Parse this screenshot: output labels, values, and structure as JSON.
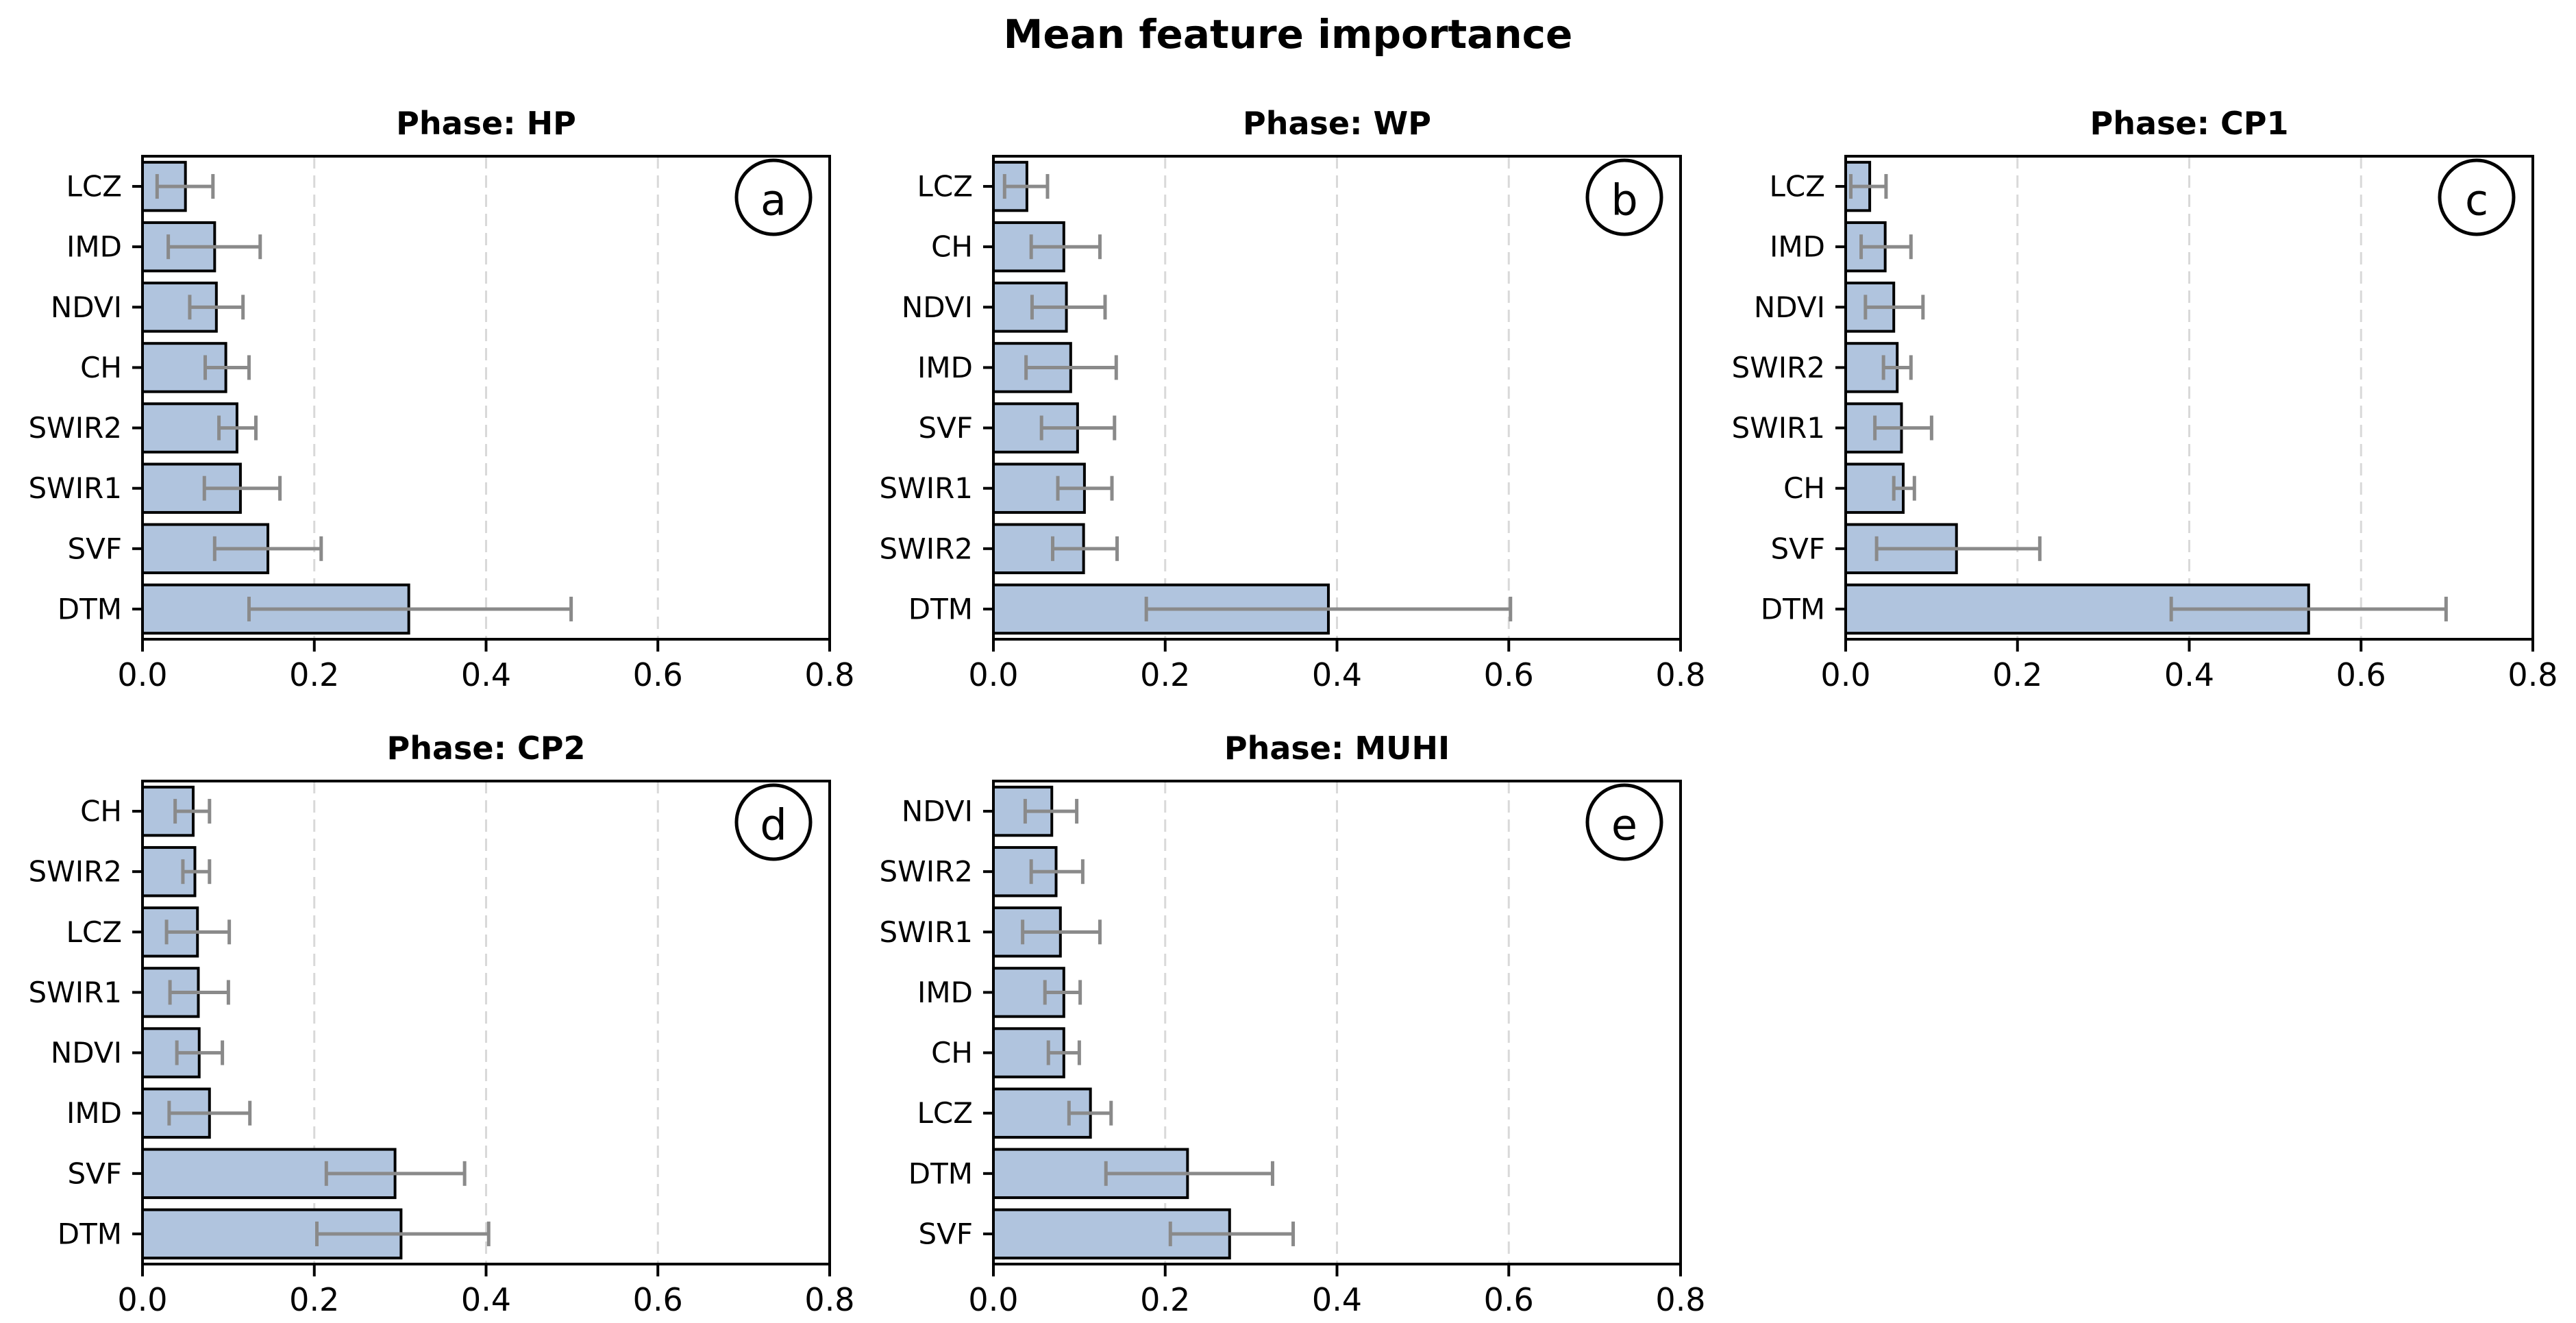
{
  "figure": {
    "title": "Mean feature importance",
    "xlim": [
      0,
      0.8
    ],
    "x_ticks": {
      "values": [
        0,
        0.2,
        0.4,
        0.6,
        0.8
      ],
      "labels": [
        "0.0",
        "0.2",
        "0.4",
        "0.6",
        "0.8"
      ]
    },
    "grid_values": [
      0.2,
      0.4,
      0.6
    ],
    "colors": {
      "bar_fill": "#b0c4de",
      "bar_edge": "#000000",
      "error": "#8a8a8a",
      "grid": "#d9d9d9",
      "spine": "#000000",
      "text": "#000000",
      "background": "#ffffff"
    }
  },
  "chart_data": [
    {
      "type": "bar",
      "orientation": "horizontal",
      "panel_label": "a",
      "title": "Phase: HP",
      "categories": [
        "LCZ",
        "IMD",
        "NDVI",
        "CH",
        "SWIR2",
        "SWIR1",
        "SVF",
        "DTM"
      ],
      "values": [
        0.05,
        0.084,
        0.086,
        0.097,
        0.11,
        0.114,
        0.146,
        0.31
      ],
      "error_low": [
        0.017,
        0.03,
        0.055,
        0.073,
        0.089,
        0.072,
        0.084,
        0.124
      ],
      "error_high": [
        0.082,
        0.137,
        0.117,
        0.124,
        0.132,
        0.16,
        0.208,
        0.499
      ],
      "xlim": [
        0,
        0.8
      ],
      "grid": true,
      "legend": false
    },
    {
      "type": "bar",
      "orientation": "horizontal",
      "panel_label": "b",
      "title": "Phase: WP",
      "categories": [
        "LCZ",
        "CH",
        "NDVI",
        "IMD",
        "SVF",
        "SWIR1",
        "SWIR2",
        "DTM"
      ],
      "values": [
        0.039,
        0.082,
        0.085,
        0.09,
        0.098,
        0.106,
        0.105,
        0.39
      ],
      "error_low": [
        0.013,
        0.044,
        0.045,
        0.038,
        0.056,
        0.075,
        0.069,
        0.178
      ],
      "error_high": [
        0.063,
        0.124,
        0.13,
        0.143,
        0.141,
        0.138,
        0.144,
        0.602
      ],
      "xlim": [
        0,
        0.8
      ],
      "grid": true,
      "legend": false
    },
    {
      "type": "bar",
      "orientation": "horizontal",
      "panel_label": "c",
      "title": "Phase: CP1",
      "categories": [
        "LCZ",
        "IMD",
        "NDVI",
        "SWIR2",
        "SWIR1",
        "CH",
        "SVF",
        "DTM"
      ],
      "values": [
        0.028,
        0.046,
        0.056,
        0.06,
        0.065,
        0.067,
        0.129,
        0.539
      ],
      "error_low": [
        0.006,
        0.018,
        0.023,
        0.044,
        0.034,
        0.056,
        0.036,
        0.379
      ],
      "error_high": [
        0.047,
        0.076,
        0.09,
        0.076,
        0.1,
        0.08,
        0.226,
        0.699
      ],
      "xlim": [
        0,
        0.8
      ],
      "grid": true,
      "legend": false
    },
    {
      "type": "bar",
      "orientation": "horizontal",
      "panel_label": "d",
      "title": "Phase: CP2",
      "categories": [
        "CH",
        "SWIR2",
        "LCZ",
        "SWIR1",
        "NDVI",
        "IMD",
        "SVF",
        "DTM"
      ],
      "values": [
        0.059,
        0.061,
        0.064,
        0.065,
        0.066,
        0.078,
        0.294,
        0.301
      ],
      "error_low": [
        0.038,
        0.047,
        0.028,
        0.032,
        0.04,
        0.031,
        0.214,
        0.203
      ],
      "error_high": [
        0.078,
        0.078,
        0.101,
        0.1,
        0.093,
        0.125,
        0.375,
        0.403
      ],
      "xlim": [
        0,
        0.8
      ],
      "grid": true,
      "legend": false
    },
    {
      "type": "bar",
      "orientation": "horizontal",
      "panel_label": "e",
      "title": "Phase: MUHI",
      "categories": [
        "NDVI",
        "SWIR2",
        "SWIR1",
        "IMD",
        "CH",
        "LCZ",
        "DTM",
        "SVF"
      ],
      "values": [
        0.068,
        0.073,
        0.078,
        0.082,
        0.082,
        0.113,
        0.226,
        0.275
      ],
      "error_low": [
        0.037,
        0.044,
        0.034,
        0.06,
        0.064,
        0.088,
        0.131,
        0.206
      ],
      "error_high": [
        0.097,
        0.104,
        0.124,
        0.101,
        0.1,
        0.137,
        0.325,
        0.349
      ],
      "xlim": [
        0,
        0.8
      ],
      "grid": true,
      "legend": false
    }
  ]
}
